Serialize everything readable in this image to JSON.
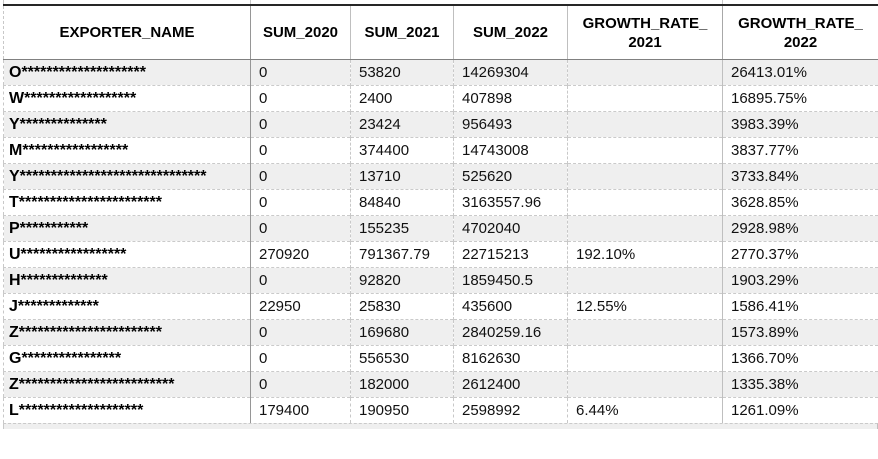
{
  "colors": {
    "row_band": "#efefef",
    "header_top_border": "#262626",
    "text": "#111111"
  },
  "table": {
    "columns": [
      {
        "label": "EXPORTER_NAME"
      },
      {
        "label": "SUM_2020"
      },
      {
        "label": "SUM_2021"
      },
      {
        "label": "SUM_2022"
      },
      {
        "label": "GROWTH_RATE_\n2021"
      },
      {
        "label": "GROWTH_RATE_\n2022"
      }
    ],
    "rows": [
      {
        "exporter": "O********************",
        "sum_2020": "0",
        "sum_2021": "53820",
        "sum_2022": "14269304",
        "growth_2021": "",
        "growth_2022": "26413.01%"
      },
      {
        "exporter": "W******************",
        "sum_2020": "0",
        "sum_2021": "2400",
        "sum_2022": "407898",
        "growth_2021": "",
        "growth_2022": "16895.75%"
      },
      {
        "exporter": "Y**************",
        "sum_2020": "0",
        "sum_2021": "23424",
        "sum_2022": "956493",
        "growth_2021": "",
        "growth_2022": "3983.39%"
      },
      {
        "exporter": "M*****************",
        "sum_2020": "0",
        "sum_2021": "374400",
        "sum_2022": "14743008",
        "growth_2021": "",
        "growth_2022": "3837.77%"
      },
      {
        "exporter": "Y******************************",
        "sum_2020": "0",
        "sum_2021": "13710",
        "sum_2022": "525620",
        "growth_2021": "",
        "growth_2022": "3733.84%"
      },
      {
        "exporter": "T***********************",
        "sum_2020": "0",
        "sum_2021": "84840",
        "sum_2022": "3163557.96",
        "growth_2021": "",
        "growth_2022": "3628.85%"
      },
      {
        "exporter": "P***********",
        "sum_2020": "0",
        "sum_2021": "155235",
        "sum_2022": "4702040",
        "growth_2021": "",
        "growth_2022": "2928.98%"
      },
      {
        "exporter": "U*****************",
        "sum_2020": "270920",
        "sum_2021": "791367.79",
        "sum_2022": "22715213",
        "growth_2021": "192.10%",
        "growth_2022": "2770.37%"
      },
      {
        "exporter": "H**************",
        "sum_2020": "0",
        "sum_2021": "92820",
        "sum_2022": "1859450.5",
        "growth_2021": "",
        "growth_2022": "1903.29%"
      },
      {
        "exporter": "J*************",
        "sum_2020": "22950",
        "sum_2021": "25830",
        "sum_2022": "435600",
        "growth_2021": "12.55%",
        "growth_2022": "1586.41%"
      },
      {
        "exporter": "Z***********************",
        "sum_2020": "0",
        "sum_2021": "169680",
        "sum_2022": "2840259.16",
        "growth_2021": "",
        "growth_2022": "1573.89%"
      },
      {
        "exporter": "G****************",
        "sum_2020": "0",
        "sum_2021": "556530",
        "sum_2022": "8162630",
        "growth_2021": "",
        "growth_2022": "1366.70%"
      },
      {
        "exporter": "Z*************************",
        "sum_2020": "0",
        "sum_2021": "182000",
        "sum_2022": "2612400",
        "growth_2021": "",
        "growth_2022": "1335.38%"
      },
      {
        "exporter": "L********************",
        "sum_2020": "179400",
        "sum_2021": "190950",
        "sum_2022": "2598992",
        "growth_2021": "6.44%",
        "growth_2022": "1261.09%"
      }
    ]
  }
}
